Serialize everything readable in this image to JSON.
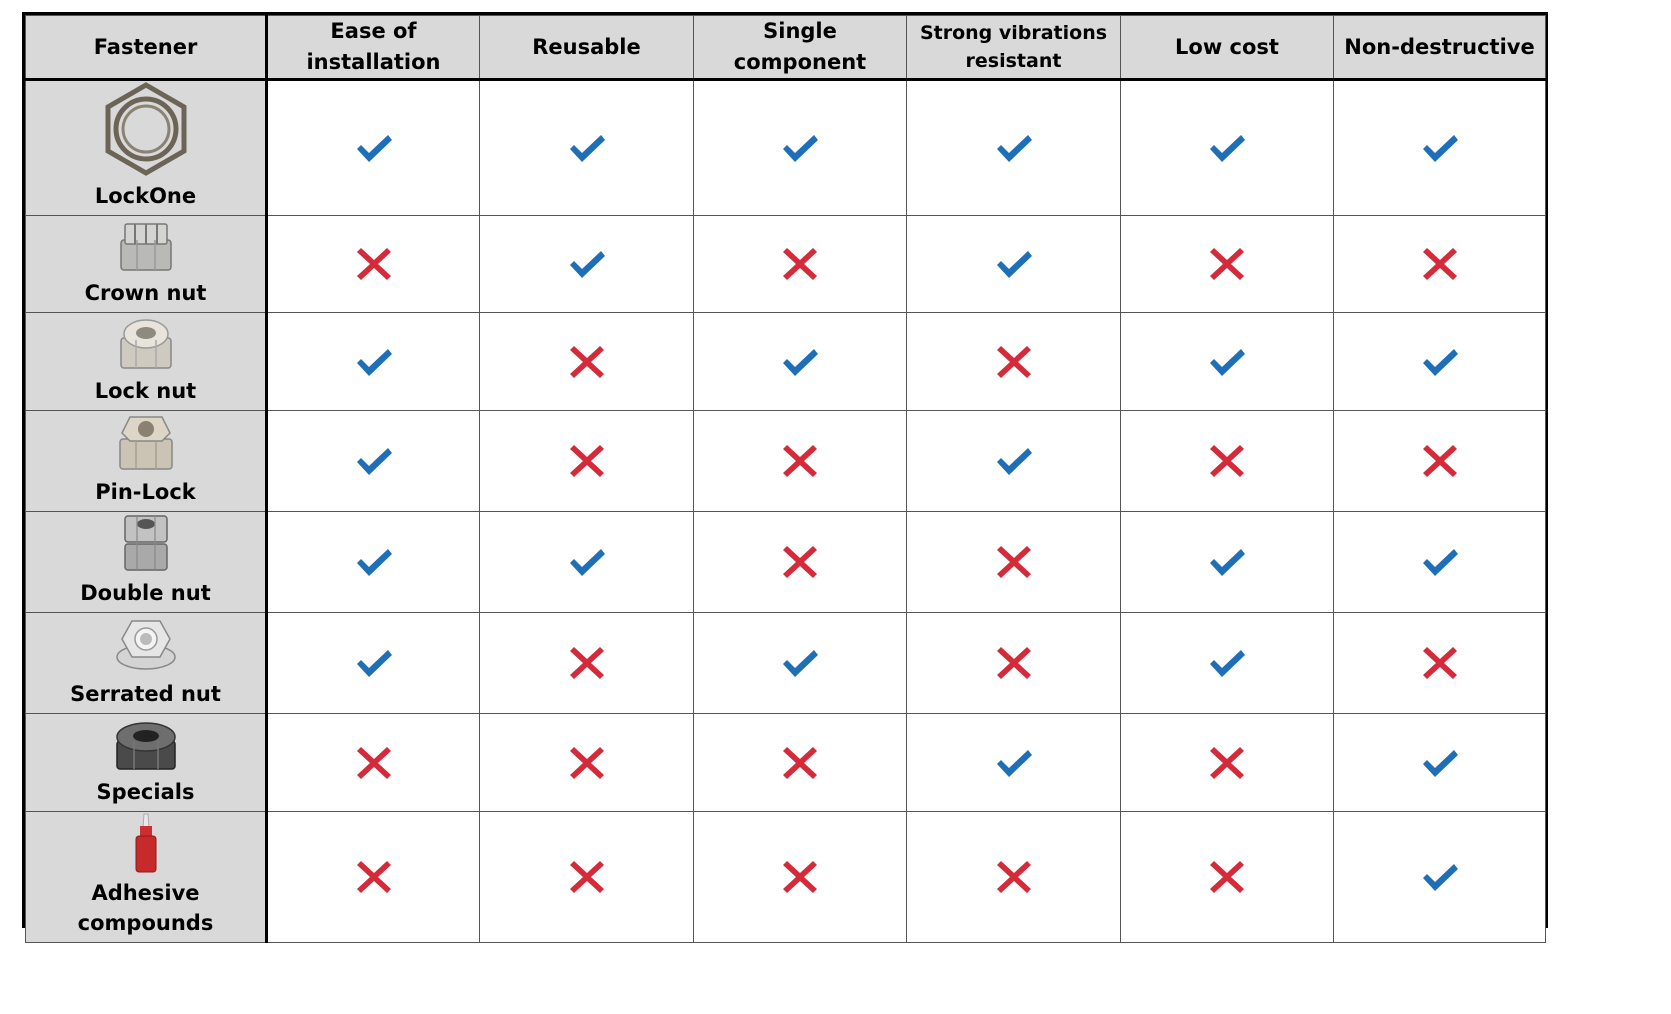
{
  "table": {
    "headers": [
      {
        "label_lines": [
          "Fastener"
        ]
      },
      {
        "label_lines": [
          "Ease of",
          "installation"
        ]
      },
      {
        "label_lines": [
          "Reusable"
        ]
      },
      {
        "label_lines": [
          "Single",
          "component"
        ]
      },
      {
        "label_lines": [
          "Strong vibrations",
          "resistant"
        ]
      },
      {
        "label_lines": [
          "Low cost"
        ]
      },
      {
        "label_lines": [
          "Non-destructive"
        ]
      }
    ],
    "rows": [
      {
        "name_lines": [
          "LockOne"
        ],
        "icon": "lockone-hex-ring-icon",
        "values": [
          true,
          true,
          true,
          true,
          true,
          true
        ]
      },
      {
        "name_lines": [
          "Crown nut"
        ],
        "icon": "crown-nut-icon",
        "values": [
          false,
          true,
          false,
          true,
          false,
          false
        ]
      },
      {
        "name_lines": [
          "Lock nut"
        ],
        "icon": "lock-nut-icon",
        "values": [
          true,
          false,
          true,
          false,
          true,
          true
        ]
      },
      {
        "name_lines": [
          "Pin-Lock"
        ],
        "icon": "pin-lock-nut-icon",
        "values": [
          true,
          false,
          false,
          true,
          false,
          false
        ]
      },
      {
        "name_lines": [
          "Double nut"
        ],
        "icon": "double-nut-icon",
        "values": [
          true,
          true,
          false,
          false,
          true,
          true
        ]
      },
      {
        "name_lines": [
          "Serrated nut"
        ],
        "icon": "serrated-nut-icon",
        "values": [
          true,
          false,
          true,
          false,
          true,
          false
        ]
      },
      {
        "name_lines": [
          "Specials"
        ],
        "icon": "special-nut-icon",
        "values": [
          false,
          false,
          false,
          true,
          false,
          true
        ]
      },
      {
        "name_lines": [
          "Adhesive",
          "compounds"
        ],
        "icon": "adhesive-bottle-icon",
        "values": [
          false,
          false,
          false,
          false,
          false,
          true
        ]
      }
    ]
  },
  "colors": {
    "check": "#1f6fb8",
    "cross": "#d42a3a",
    "header_bg": "#d9d9d9"
  }
}
